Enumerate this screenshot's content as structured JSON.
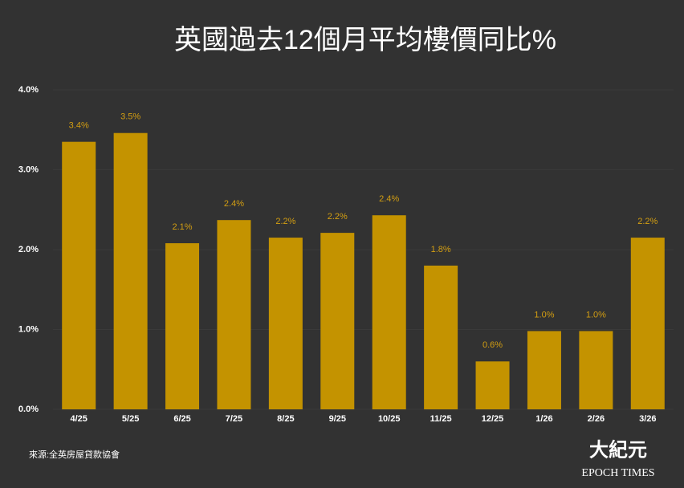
{
  "chart_data": {
    "type": "bar",
    "title": "英國過去12個月平均樓價同比%",
    "categories": [
      "4/25",
      "5/25",
      "6/25",
      "7/25",
      "8/25",
      "9/25",
      "10/25",
      "11/25",
      "12/25",
      "1/26",
      "2/26",
      "3/26"
    ],
    "values": [
      3.35,
      3.46,
      2.08,
      2.37,
      2.15,
      2.21,
      2.43,
      1.8,
      0.6,
      0.98,
      0.98,
      2.15
    ],
    "value_labels": [
      "3.4%",
      "3.5%",
      "2.1%",
      "2.4%",
      "2.2%",
      "2.2%",
      "2.4%",
      "1.8%",
      "0.6%",
      "1.0%",
      "1.0%",
      "2.2%"
    ],
    "color": "#c49300",
    "ylim": [
      0,
      4
    ],
    "yticks": [
      {
        "value": 0,
        "label": "0.0%"
      },
      {
        "value": 1,
        "label": "1.0%"
      },
      {
        "value": 2,
        "label": "2.0%"
      },
      {
        "value": 3,
        "label": "3.0%"
      },
      {
        "value": 4,
        "label": "4.0%"
      }
    ],
    "grid": true,
    "source": "來源:全英房屋貸款協會",
    "logo": {
      "chinese": "大紀元",
      "english": "EPOCH TIMES"
    }
  }
}
